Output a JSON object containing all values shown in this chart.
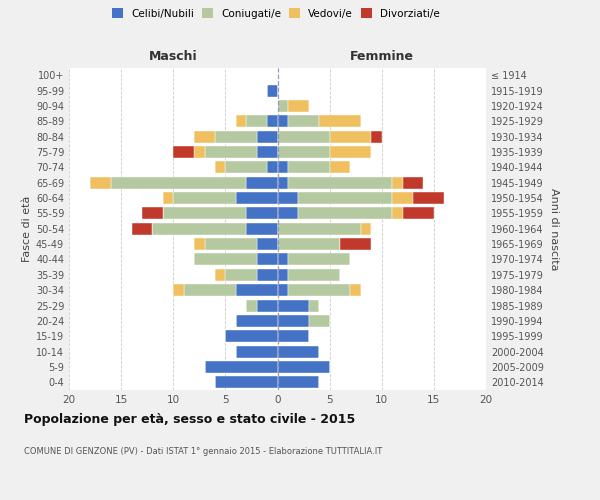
{
  "age_groups": [
    "0-4",
    "5-9",
    "10-14",
    "15-19",
    "20-24",
    "25-29",
    "30-34",
    "35-39",
    "40-44",
    "45-49",
    "50-54",
    "55-59",
    "60-64",
    "65-69",
    "70-74",
    "75-79",
    "80-84",
    "85-89",
    "90-94",
    "95-99",
    "100+"
  ],
  "birth_years": [
    "2010-2014",
    "2005-2009",
    "2000-2004",
    "1995-1999",
    "1990-1994",
    "1985-1989",
    "1980-1984",
    "1975-1979",
    "1970-1974",
    "1965-1969",
    "1960-1964",
    "1955-1959",
    "1950-1954",
    "1945-1949",
    "1940-1944",
    "1935-1939",
    "1930-1934",
    "1925-1929",
    "1920-1924",
    "1915-1919",
    "≤ 1914"
  ],
  "male_celibi": [
    6,
    7,
    4,
    5,
    4,
    2,
    4,
    2,
    2,
    2,
    3,
    3,
    4,
    3,
    1,
    2,
    2,
    1,
    0,
    1,
    0
  ],
  "male_coniugati": [
    0,
    0,
    0,
    0,
    0,
    1,
    5,
    3,
    6,
    5,
    9,
    8,
    6,
    13,
    4,
    5,
    4,
    2,
    0,
    0,
    0
  ],
  "male_vedovi": [
    0,
    0,
    0,
    0,
    0,
    0,
    1,
    1,
    0,
    1,
    0,
    0,
    1,
    2,
    1,
    1,
    2,
    1,
    0,
    0,
    0
  ],
  "male_divorziati": [
    0,
    0,
    0,
    0,
    0,
    0,
    0,
    0,
    0,
    0,
    2,
    2,
    0,
    0,
    0,
    2,
    0,
    0,
    0,
    0,
    0
  ],
  "female_celibi": [
    4,
    5,
    4,
    3,
    3,
    3,
    1,
    1,
    1,
    0,
    0,
    2,
    2,
    1,
    1,
    0,
    0,
    1,
    0,
    0,
    0
  ],
  "female_coniugati": [
    0,
    0,
    0,
    0,
    2,
    1,
    6,
    5,
    6,
    6,
    8,
    9,
    9,
    10,
    4,
    5,
    5,
    3,
    1,
    0,
    0
  ],
  "female_vedovi": [
    0,
    0,
    0,
    0,
    0,
    0,
    1,
    0,
    0,
    0,
    1,
    1,
    2,
    1,
    2,
    4,
    4,
    4,
    2,
    0,
    0
  ],
  "female_divorziati": [
    0,
    0,
    0,
    0,
    0,
    0,
    0,
    0,
    0,
    3,
    0,
    3,
    3,
    2,
    0,
    0,
    1,
    0,
    0,
    0,
    0
  ],
  "colors": {
    "celibi": "#4472C4",
    "coniugati": "#B5C9A0",
    "vedovi": "#F0C060",
    "divorziati": "#C0392B"
  },
  "title": "Popolazione per età, sesso e stato civile - 2015",
  "subtitle": "COMUNE DI GENZONE (PV) - Dati ISTAT 1° gennaio 2015 - Elaborazione TUTTITALIA.IT",
  "xlabel_left": "Maschi",
  "xlabel_right": "Femmine",
  "ylabel_left": "Fasce di età",
  "ylabel_right": "Anni di nascita",
  "xlim": 20,
  "background_color": "#f0f0f0",
  "plot_bg": "#ffffff",
  "grid_color": "#cccccc"
}
